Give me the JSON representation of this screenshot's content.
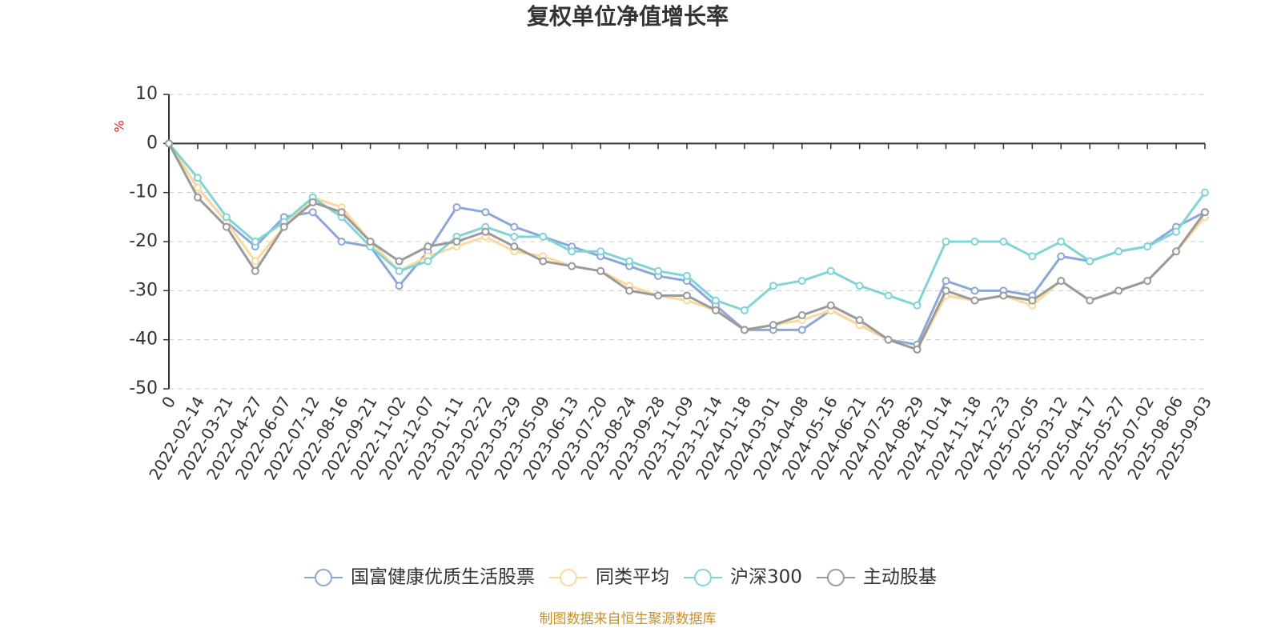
{
  "chart_data": {
    "type": "line",
    "title": "复权单位净值增长率",
    "y_label": "%",
    "source": "制图数据来自恒生聚源数据库",
    "categories": [
      "0",
      "2022-02-14",
      "2022-03-21",
      "2022-04-27",
      "2022-06-07",
      "2022-07-12",
      "2022-08-16",
      "2022-09-21",
      "2022-11-02",
      "2022-12-07",
      "2023-01-11",
      "2023-02-22",
      "2023-03-29",
      "2023-05-09",
      "2023-06-13",
      "2023-07-20",
      "2023-08-24",
      "2023-09-28",
      "2023-11-09",
      "2023-12-14",
      "2024-01-18",
      "2024-03-01",
      "2024-04-08",
      "2024-05-16",
      "2024-06-21",
      "2024-07-25",
      "2024-08-29",
      "2024-10-14",
      "2024-11-18",
      "2024-12-23",
      "2025-02-05",
      "2025-03-12",
      "2025-04-17",
      "2025-05-27",
      "2025-07-02",
      "2025-08-06",
      "2025-09-03"
    ],
    "series": [
      {
        "name": "国富健康优质生活股票",
        "color": "#8ba6d9",
        "values": [
          0,
          -9,
          -16,
          -21,
          -15,
          -14,
          -20,
          -21,
          -29,
          -22,
          -13,
          -14,
          -17,
          -19,
          -21,
          -23,
          -25,
          -27,
          -28,
          -33,
          -38,
          -38,
          -38,
          -34,
          -37,
          -40,
          -41,
          -28,
          -30,
          -30,
          -31,
          -23,
          -24,
          -22,
          -21,
          -17,
          -14
        ]
      },
      {
        "name": "同类平均",
        "color": "#fdd89a",
        "values": [
          0,
          -9,
          -16,
          -24,
          -17,
          -11,
          -13,
          -20,
          -26,
          -23,
          -21,
          -19,
          -22,
          -23,
          -25,
          -26,
          -29,
          -31,
          -32,
          -34,
          -38,
          -37,
          -36,
          -34,
          -37,
          -40,
          -42,
          -31,
          -32,
          -31,
          -33,
          -28,
          -32,
          -30,
          -28,
          -22,
          -15
        ]
      },
      {
        "name": "沪深300",
        "color": "#80d4d6",
        "values": [
          0,
          -7,
          -15,
          -20,
          -16,
          -11,
          -15,
          -21,
          -26,
          -24,
          -19,
          -17,
          -19,
          -19,
          -22,
          -22,
          -24,
          -26,
          -27,
          -32,
          -34,
          -29,
          -28,
          -26,
          -29,
          -31,
          -33,
          -20,
          -20,
          -20,
          -23,
          -20,
          -24,
          -22,
          -21,
          -18,
          -10
        ]
      },
      {
        "name": "主动股基",
        "color": "#9a9a9a",
        "values": [
          0,
          -11,
          -17,
          -26,
          -17,
          -12,
          -14,
          -20,
          -24,
          -21,
          -20,
          -18,
          -21,
          -24,
          -25,
          -26,
          -30,
          -31,
          -31,
          -34,
          -38,
          -37,
          -35,
          -33,
          -36,
          -40,
          -42,
          -30,
          -32,
          -31,
          -32,
          -28,
          -32,
          -30,
          -28,
          -22,
          -14
        ]
      }
    ],
    "ylim": [
      -50,
      10
    ],
    "yticks": [
      -50,
      -40,
      -30,
      -20,
      -10,
      0,
      10
    ],
    "grid": true,
    "legend": "bottom"
  }
}
